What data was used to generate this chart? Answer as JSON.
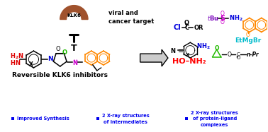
{
  "bg_color": "#ffffff",
  "klk6_label": "KLK6",
  "klk6_color": "#a0522d",
  "viral_cancer_text": "viral and\ncancer target",
  "left_label": "Reversible KLK6 inhibitors",
  "arrow_color": "#404040",
  "hydroxylamine_text": "HO–NH₂",
  "hydroxylamine_color": "#ff0000",
  "etmgbr_text": "EtMgBr",
  "etmgbr_color": "#00bbcc",
  "bullet_color": "#0000ee",
  "bullet1": "Improved Synthesis",
  "bullet2": "2 X-ray structures\nof intermediates",
  "bullet3": "2 X-ray structures\nof protein-ligand\ncomplexes",
  "orange": "#ff8800",
  "red": "#dd0000",
  "green": "#22bb00",
  "blue": "#0000dd",
  "magenta": "#cc00cc",
  "cyan": "#00bbcc",
  "black": "#000000",
  "purple": "#7700bb"
}
